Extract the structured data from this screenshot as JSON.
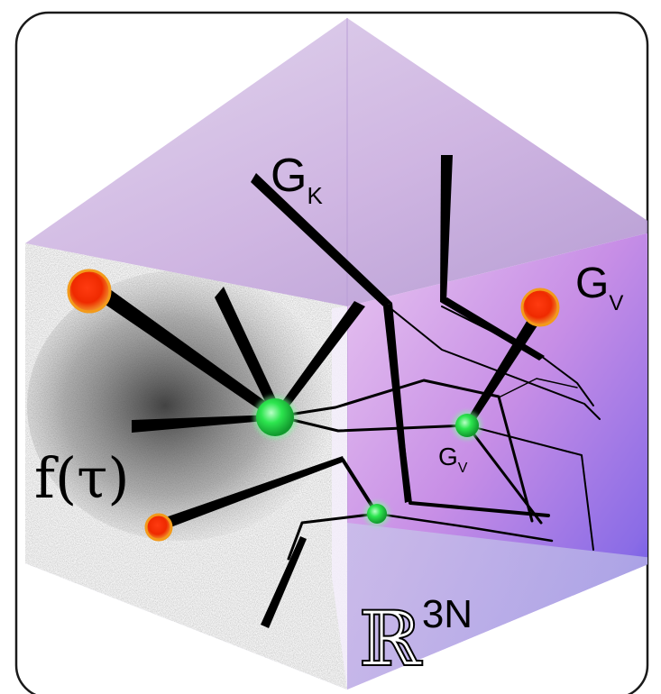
{
  "labels": {
    "g_k": {
      "base": "G",
      "sub": "K"
    },
    "g_v_large": {
      "base": "G",
      "sub": "V"
    },
    "g_v_small": {
      "base": "G",
      "sub": "V"
    },
    "f_tau": "f(τ)",
    "configuration_space": {
      "base": "ℝ",
      "sup": "3N"
    }
  },
  "colors": {
    "frame_stroke": "#1a1a1a",
    "cube_top": "#c9b2dc",
    "cube_right": "#c892e4",
    "cube_right_deep": "#5a4ae6",
    "cube_left_wall": "#cfcfcf",
    "cube_bottom": "#c8c8ea",
    "vertex_green": "#27e14a",
    "endpoint_red": "#ff2a00",
    "endpoint_orange": "#f39a1a",
    "path_black": "#000000"
  }
}
